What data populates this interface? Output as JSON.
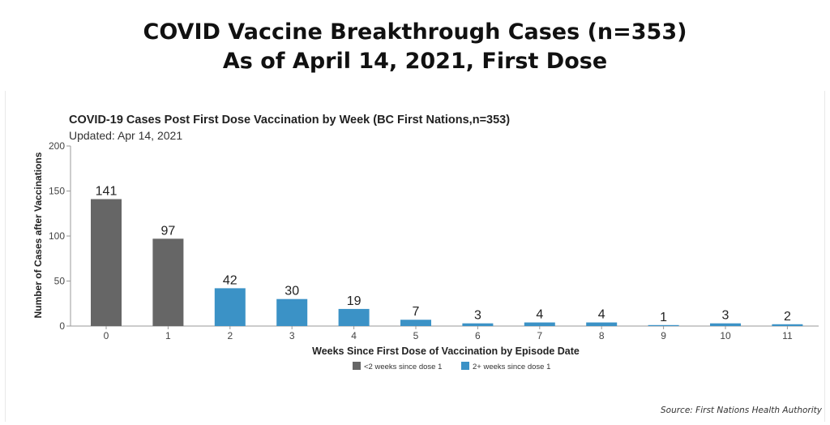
{
  "header": {
    "title_line1": "COVID Vaccine Breakthrough Cases (n=353)",
    "title_line2": "As of April 14, 2021, First Dose"
  },
  "source": "Source: First Nations Health Authority",
  "chart_data": {
    "type": "bar",
    "title": "COVID-19 Cases Post First Dose Vaccination by Week (BC First Nations,n=353)",
    "subtitle": "Updated: Apr 14, 2021",
    "xlabel": "Weeks Since First Dose of Vaccination by Episode Date",
    "ylabel": "Number of Cases after Vaccinations",
    "ylim": [
      0,
      200
    ],
    "yticks": [
      0,
      50,
      100,
      150,
      200
    ],
    "categories": [
      "0",
      "1",
      "2",
      "3",
      "4",
      "5",
      "6",
      "7",
      "8",
      "9",
      "10",
      "11"
    ],
    "values": [
      141,
      97,
      42,
      30,
      19,
      7,
      3,
      4,
      4,
      1,
      3,
      2
    ],
    "groups": [
      "<2 weeks since dose 1",
      "<2 weeks since dose 1",
      "2+ weeks since dose 1",
      "2+ weeks since dose 1",
      "2+ weeks since dose 1",
      "2+ weeks since dose 1",
      "2+ weeks since dose 1",
      "2+ weeks since dose 1",
      "2+ weeks since dose 1",
      "2+ weeks since dose 1",
      "2+ weeks since dose 1",
      "2+ weeks since dose 1"
    ],
    "legend": [
      {
        "name": "<2 weeks since dose 1",
        "color": "#666666"
      },
      {
        "name": "2+ weeks since dose 1",
        "color": "#3b92c6"
      }
    ],
    "legend_position": "bottom-center",
    "grid": false
  }
}
